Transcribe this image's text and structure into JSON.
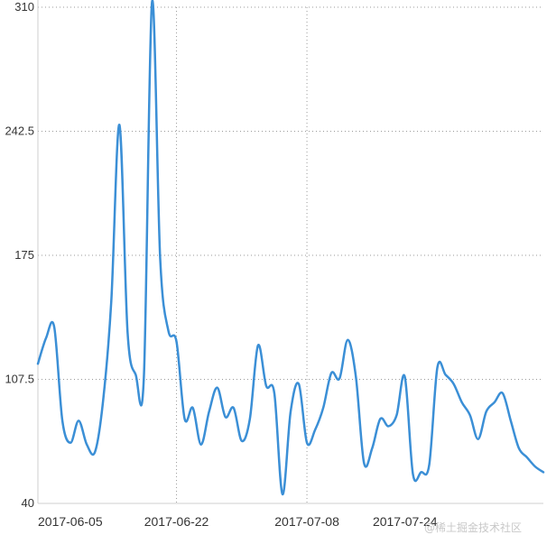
{
  "chart_data": {
    "type": "line",
    "title": "",
    "xlabel": "",
    "ylabel": "",
    "ylim": [
      40,
      310
    ],
    "y_ticks": [
      "40",
      "107.5",
      "175",
      "242.5",
      "310"
    ],
    "x_ticks": [
      "2017-06-05",
      "2017-06-22",
      "2017-07-08",
      "2017-07-24"
    ],
    "grid": "dotted vertical and horizontal",
    "line_color": "#3b8fd6",
    "series": [
      {
        "x": [
          "2017-06-05",
          "2017-06-06",
          "2017-06-07",
          "2017-06-08",
          "2017-06-09",
          "2017-06-10",
          "2017-06-11",
          "2017-06-12",
          "2017-06-13",
          "2017-06-14",
          "2017-06-15",
          "2017-06-16",
          "2017-06-17",
          "2017-06-18",
          "2017-06-19",
          "2017-06-20",
          "2017-06-21",
          "2017-06-22",
          "2017-06-23",
          "2017-06-24",
          "2017-06-25",
          "2017-06-26",
          "2017-06-27",
          "2017-06-28",
          "2017-06-29",
          "2017-06-30",
          "2017-07-01",
          "2017-07-02",
          "2017-07-03",
          "2017-07-04",
          "2017-07-05",
          "2017-07-06",
          "2017-07-07",
          "2017-07-08",
          "2017-07-09",
          "2017-07-10",
          "2017-07-11",
          "2017-07-12",
          "2017-07-13",
          "2017-07-14",
          "2017-07-15",
          "2017-07-16",
          "2017-07-17",
          "2017-07-18",
          "2017-07-19",
          "2017-07-20",
          "2017-07-21",
          "2017-07-22",
          "2017-07-23",
          "2017-07-24",
          "2017-07-25",
          "2017-07-26",
          "2017-07-27",
          "2017-07-28",
          "2017-07-29",
          "2017-07-30",
          "2017-07-31",
          "2017-08-01",
          "2017-08-02",
          "2017-08-03",
          "2017-08-04",
          "2017-08-05",
          "2017-08-06"
        ],
        "values": [
          116,
          130,
          136,
          85,
          73,
          85,
          72,
          68,
          96,
          150,
          246,
          133,
          110,
          109,
          313,
          173,
          134,
          128,
          86,
          92,
          72,
          90,
          103,
          87,
          92,
          74,
          86,
          126,
          104,
          100,
          45,
          90,
          105,
          73,
          80,
          92,
          111,
          108,
          129,
          109,
          62,
          70,
          86,
          82,
          88,
          109,
          56,
          57,
          61,
          114,
          110,
          105,
          95,
          88,
          75,
          90,
          95,
          100,
          85,
          70,
          65,
          60,
          57
        ],
        "name": ""
      }
    ]
  }
}
